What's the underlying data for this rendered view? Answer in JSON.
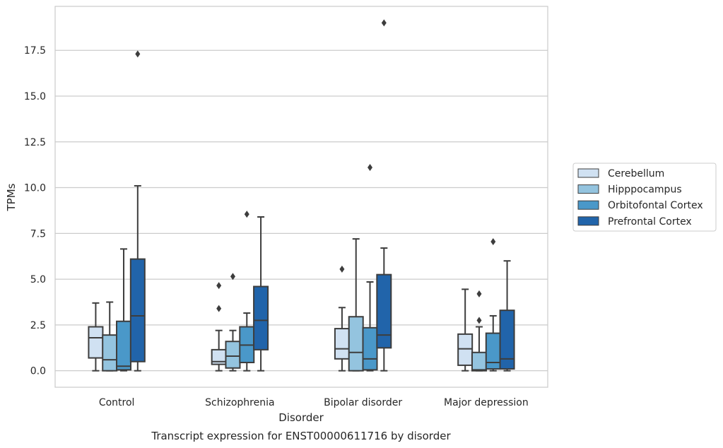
{
  "chart_data": {
    "type": "box",
    "title": "Transcript expression for ENST00000611716 by disorder",
    "xlabel": "Disorder",
    "ylabel": "TPMs",
    "ylim": [
      -0.9,
      19.9
    ],
    "yticks": [
      "0.0",
      "2.5",
      "5.0",
      "7.5",
      "10.0",
      "12.5",
      "15.0",
      "17.5"
    ],
    "grid": "horizontal",
    "legend_position": "right",
    "categories": [
      "Control",
      "Schizophrenia",
      "Bipolar disorder",
      "Major depression"
    ],
    "series": [
      {
        "name": "Cerebellum",
        "color": "#d0e1f2",
        "boxes": [
          {
            "whislo": 0.0,
            "q1": 0.7,
            "med": 1.8,
            "q3": 2.4,
            "whishi": 3.7,
            "fliers": []
          },
          {
            "whislo": 0.0,
            "q1": 0.35,
            "med": 0.5,
            "q3": 1.15,
            "whishi": 2.2,
            "fliers": [
              3.4,
              4.65
            ]
          },
          {
            "whislo": 0.0,
            "q1": 0.65,
            "med": 1.2,
            "q3": 2.3,
            "whishi": 3.45,
            "fliers": [
              5.55
            ]
          },
          {
            "whislo": 0.0,
            "q1": 0.3,
            "med": 1.2,
            "q3": 2.0,
            "whishi": 4.45,
            "fliers": []
          }
        ]
      },
      {
        "name": "Hipppocampus",
        "color": "#94c4df",
        "boxes": [
          {
            "whislo": 0.0,
            "q1": 0.0,
            "med": 0.6,
            "q3": 1.95,
            "whishi": 3.75,
            "fliers": []
          },
          {
            "whislo": 0.0,
            "q1": 0.15,
            "med": 0.8,
            "q3": 1.6,
            "whishi": 2.2,
            "fliers": [
              5.15
            ]
          },
          {
            "whislo": 0.0,
            "q1": 0.0,
            "med": 1.0,
            "q3": 2.95,
            "whishi": 7.2,
            "fliers": []
          },
          {
            "whislo": 0.0,
            "q1": 0.0,
            "med": 0.05,
            "q3": 1.0,
            "whishi": 2.4,
            "fliers": [
              2.75,
              4.2
            ]
          }
        ]
      },
      {
        "name": "Orbitofontal Cortex",
        "color": "#4a98c9",
        "boxes": [
          {
            "whislo": 0.0,
            "q1": 0.05,
            "med": 0.25,
            "q3": 2.7,
            "whishi": 6.65,
            "fliers": []
          },
          {
            "whislo": 0.0,
            "q1": 0.45,
            "med": 1.4,
            "q3": 2.4,
            "whishi": 3.15,
            "fliers": [
              8.55
            ]
          },
          {
            "whislo": 0.0,
            "q1": 0.05,
            "med": 0.65,
            "q3": 2.35,
            "whishi": 4.85,
            "fliers": [
              11.1
            ]
          },
          {
            "whislo": 0.0,
            "q1": 0.1,
            "med": 0.45,
            "q3": 2.05,
            "whishi": 3.0,
            "fliers": [
              7.05
            ]
          }
        ]
      },
      {
        "name": "Prefrontal Cortex",
        "color": "#2164aa",
        "boxes": [
          {
            "whislo": 0.0,
            "q1": 0.5,
            "med": 3.0,
            "q3": 6.1,
            "whishi": 10.1,
            "fliers": [
              17.3
            ]
          },
          {
            "whislo": 0.0,
            "q1": 1.15,
            "med": 2.75,
            "q3": 4.6,
            "whishi": 8.4,
            "fliers": []
          },
          {
            "whislo": 0.0,
            "q1": 1.25,
            "med": 1.95,
            "q3": 5.25,
            "whishi": 6.7,
            "fliers": [
              19.0
            ]
          },
          {
            "whislo": 0.0,
            "q1": 0.1,
            "med": 0.65,
            "q3": 3.3,
            "whishi": 6.0,
            "fliers": []
          }
        ]
      }
    ]
  }
}
